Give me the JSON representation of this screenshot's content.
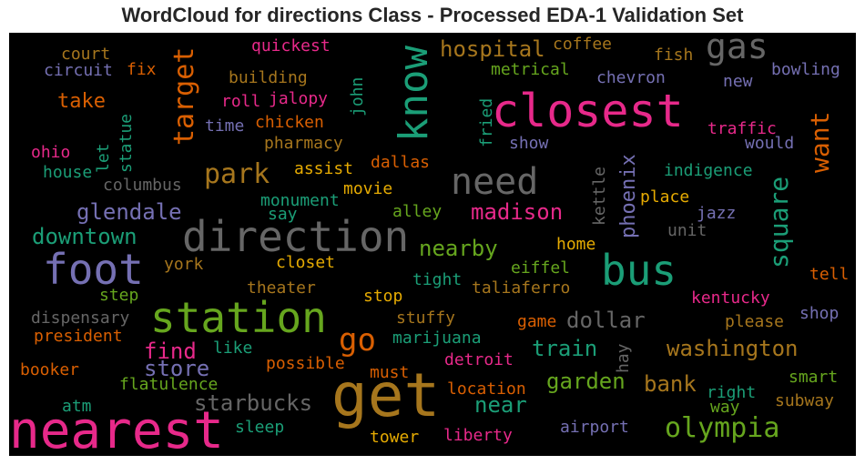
{
  "chart_data": {
    "type": "wordcloud",
    "title": "WordCloud for directions Class - Processed EDA-1 Validation Set",
    "background": "#000000",
    "palette": "Dark2",
    "words": [
      {
        "text": "get",
        "color": "#a6761d"
      },
      {
        "text": "nearest",
        "color": "#e7298a"
      },
      {
        "text": "closest",
        "color": "#e7298a"
      },
      {
        "text": "direction",
        "color": "#666666"
      },
      {
        "text": "station",
        "color": "#66a61e"
      },
      {
        "text": "foot",
        "color": "#7570b3"
      },
      {
        "text": "bus",
        "color": "#1b9e77"
      },
      {
        "text": "know",
        "color": "#1b9e77"
      },
      {
        "text": "need",
        "color": "#666666"
      },
      {
        "text": "gas",
        "color": "#666666"
      },
      {
        "text": "olympia",
        "color": "#66a61e"
      },
      {
        "text": "go",
        "color": "#d95f02"
      },
      {
        "text": "park",
        "color": "#a6761d"
      },
      {
        "text": "target",
        "color": "#d95f02"
      },
      {
        "text": "want",
        "color": "#d95f02"
      },
      {
        "text": "square",
        "color": "#1b9e77"
      },
      {
        "text": "washington",
        "color": "#a6761d"
      },
      {
        "text": "starbucks",
        "color": "#666666"
      },
      {
        "text": "garden",
        "color": "#66a61e"
      },
      {
        "text": "dollar",
        "color": "#666666"
      },
      {
        "text": "hospital",
        "color": "#a6761d"
      },
      {
        "text": "glendale",
        "color": "#7570b3"
      },
      {
        "text": "downtown",
        "color": "#1b9e77"
      },
      {
        "text": "madison",
        "color": "#e7298a"
      },
      {
        "text": "nearby",
        "color": "#66a61e"
      },
      {
        "text": "train",
        "color": "#1b9e77"
      },
      {
        "text": "find",
        "color": "#e7298a"
      },
      {
        "text": "store",
        "color": "#7570b3"
      },
      {
        "text": "near",
        "color": "#1b9e77"
      },
      {
        "text": "bank",
        "color": "#a6761d"
      },
      {
        "text": "phoenix",
        "color": "#7570b3"
      },
      {
        "text": "take",
        "color": "#d95f02"
      },
      {
        "text": "coffee",
        "color": "#a6761d"
      },
      {
        "text": "quickest",
        "color": "#e7298a"
      },
      {
        "text": "court",
        "color": "#a6761d"
      },
      {
        "text": "circuit",
        "color": "#7570b3"
      },
      {
        "text": "fix",
        "color": "#d95f02"
      },
      {
        "text": "metrical",
        "color": "#66a61e"
      },
      {
        "text": "fish",
        "color": "#a6761d"
      },
      {
        "text": "chevron",
        "color": "#7570b3"
      },
      {
        "text": "bowling",
        "color": "#7570b3"
      },
      {
        "text": "building",
        "color": "#a6761d"
      },
      {
        "text": "new",
        "color": "#7570b3"
      },
      {
        "text": "roll",
        "color": "#e7298a"
      },
      {
        "text": "jalopy",
        "color": "#e7298a"
      },
      {
        "text": "john",
        "color": "#1b9e77"
      },
      {
        "text": "time",
        "color": "#7570b3"
      },
      {
        "text": "chicken",
        "color": "#d95f02"
      },
      {
        "text": "statue",
        "color": "#1b9e77"
      },
      {
        "text": "fried",
        "color": "#1b9e77"
      },
      {
        "text": "traffic",
        "color": "#e7298a"
      },
      {
        "text": "ohio",
        "color": "#e7298a"
      },
      {
        "text": "let",
        "color": "#1b9e77"
      },
      {
        "text": "pharmacy",
        "color": "#a6761d"
      },
      {
        "text": "show",
        "color": "#7570b3"
      },
      {
        "text": "would",
        "color": "#7570b3"
      },
      {
        "text": "house",
        "color": "#1b9e77"
      },
      {
        "text": "assist",
        "color": "#e6ab02"
      },
      {
        "text": "dallas",
        "color": "#d95f02"
      },
      {
        "text": "kettle",
        "color": "#666666"
      },
      {
        "text": "indigence",
        "color": "#1b9e77"
      },
      {
        "text": "columbus",
        "color": "#666666"
      },
      {
        "text": "movie",
        "color": "#e6ab02"
      },
      {
        "text": "place",
        "color": "#e6ab02"
      },
      {
        "text": "monument",
        "color": "#1b9e77"
      },
      {
        "text": "say",
        "color": "#1b9e77"
      },
      {
        "text": "alley",
        "color": "#66a61e"
      },
      {
        "text": "jazz",
        "color": "#7570b3"
      },
      {
        "text": "unit",
        "color": "#666666"
      },
      {
        "text": "home",
        "color": "#e6ab02"
      },
      {
        "text": "york",
        "color": "#a6761d"
      },
      {
        "text": "closet",
        "color": "#e6ab02"
      },
      {
        "text": "eiffel",
        "color": "#66a61e"
      },
      {
        "text": "tell",
        "color": "#d95f02"
      },
      {
        "text": "step",
        "color": "#66a61e"
      },
      {
        "text": "theater",
        "color": "#a6761d"
      },
      {
        "text": "tight",
        "color": "#1b9e77"
      },
      {
        "text": "taliaferro",
        "color": "#a6761d"
      },
      {
        "text": "stop",
        "color": "#e6ab02"
      },
      {
        "text": "kentucky",
        "color": "#e7298a"
      },
      {
        "text": "dispensary",
        "color": "#666666"
      },
      {
        "text": "stuffy",
        "color": "#a6761d"
      },
      {
        "text": "game",
        "color": "#d95f02"
      },
      {
        "text": "shop",
        "color": "#7570b3"
      },
      {
        "text": "please",
        "color": "#a6761d"
      },
      {
        "text": "president",
        "color": "#d95f02"
      },
      {
        "text": "marijuana",
        "color": "#1b9e77"
      },
      {
        "text": "like",
        "color": "#1b9e77"
      },
      {
        "text": "hay",
        "color": "#666666"
      },
      {
        "text": "booker",
        "color": "#d95f02"
      },
      {
        "text": "possible",
        "color": "#d95f02"
      },
      {
        "text": "detroit",
        "color": "#e7298a"
      },
      {
        "text": "must",
        "color": "#d95f02"
      },
      {
        "text": "smart",
        "color": "#66a61e"
      },
      {
        "text": "flatulence",
        "color": "#66a61e"
      },
      {
        "text": "location",
        "color": "#d95f02"
      },
      {
        "text": "right",
        "color": "#1b9e77"
      },
      {
        "text": "atm",
        "color": "#1b9e77"
      },
      {
        "text": "way",
        "color": "#66a61e"
      },
      {
        "text": "subway",
        "color": "#a6761d"
      },
      {
        "text": "sleep",
        "color": "#1b9e77"
      },
      {
        "text": "airport",
        "color": "#7570b3"
      },
      {
        "text": "tower",
        "color": "#e6ab02"
      },
      {
        "text": "liberty",
        "color": "#e7298a"
      }
    ]
  }
}
